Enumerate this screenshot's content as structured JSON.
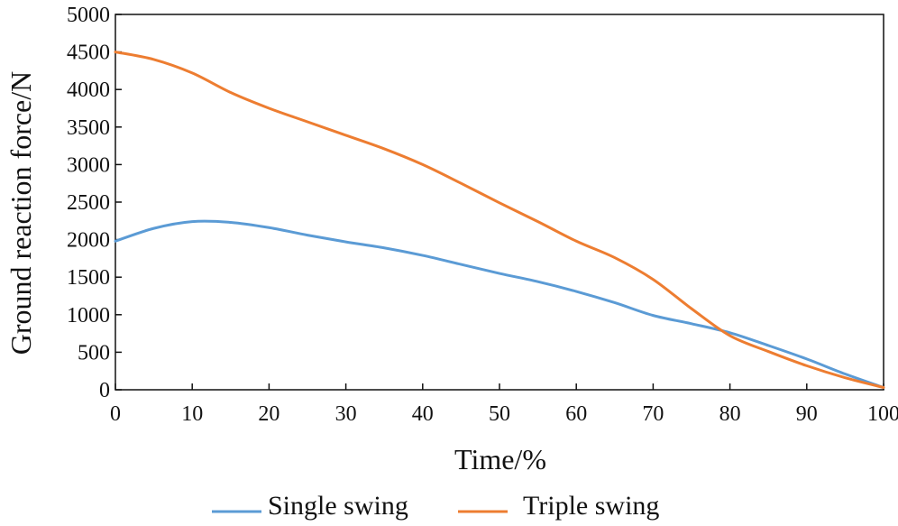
{
  "chart_data": {
    "type": "line",
    "xlabel": "Time/%",
    "ylabel": "Ground reaction force/N",
    "xlim": [
      0,
      100
    ],
    "ylim": [
      0,
      5000
    ],
    "xticks": [
      0,
      10,
      20,
      30,
      40,
      50,
      60,
      70,
      80,
      90,
      100
    ],
    "yticks": [
      0,
      500,
      1000,
      1500,
      2000,
      2500,
      3000,
      3500,
      4000,
      4500,
      5000
    ],
    "grid": false,
    "legend": {
      "position": "bottom-center",
      "entries": [
        "Single swing",
        "Triple swing"
      ]
    },
    "series": [
      {
        "name": "Single swing",
        "color": "#5b9bd5",
        "x": [
          0,
          5,
          10,
          15,
          20,
          25,
          30,
          35,
          40,
          45,
          50,
          55,
          60,
          65,
          70,
          75,
          80,
          85,
          90,
          95,
          100
        ],
        "y": [
          1980,
          2150,
          2240,
          2230,
          2160,
          2060,
          1970,
          1890,
          1790,
          1670,
          1550,
          1440,
          1310,
          1160,
          990,
          880,
          760,
          590,
          410,
          210,
          30
        ]
      },
      {
        "name": "Triple swing",
        "color": "#ed7d31",
        "x": [
          0,
          5,
          10,
          15,
          20,
          25,
          30,
          35,
          40,
          45,
          50,
          55,
          60,
          65,
          70,
          75,
          80,
          85,
          90,
          95,
          100
        ],
        "y": [
          4500,
          4400,
          4220,
          3960,
          3750,
          3570,
          3390,
          3210,
          3000,
          2750,
          2490,
          2240,
          1980,
          1760,
          1470,
          1080,
          720,
          510,
          320,
          160,
          30
        ]
      }
    ]
  }
}
